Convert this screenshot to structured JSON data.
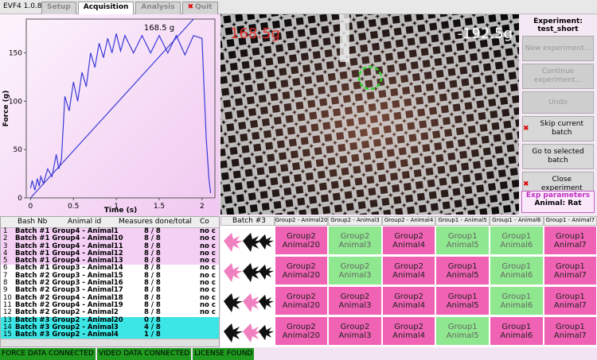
{
  "app": {
    "version": "EVF4 1.0.8",
    "tabs": [
      {
        "label": "Setup",
        "active": false
      },
      {
        "label": "Acquisition",
        "active": true
      },
      {
        "label": "Analysis",
        "active": false
      },
      {
        "label": "Quit",
        "active": false
      }
    ]
  },
  "force_plot": {
    "type": "line",
    "annotation": "168.5 g",
    "xlabel": "Time (s)",
    "ylabel": "Force (g)",
    "xlim": [
      -0.05,
      2.15
    ],
    "ylim": [
      0,
      185
    ],
    "xticks": [
      0,
      0.5,
      1,
      1.5,
      2
    ],
    "yticks": [
      0,
      50,
      100,
      150
    ],
    "series": [
      {
        "color": "#3a3ad8",
        "x": [
          0,
          0.02,
          0.05,
          0.08,
          0.1,
          0.12,
          0.15,
          0.2,
          0.25,
          0.3,
          0.33,
          0.36,
          0.4,
          0.45,
          0.5,
          0.55,
          0.6,
          0.65,
          0.7,
          0.75,
          0.8,
          0.85,
          0.9,
          0.95,
          1.0,
          1.05,
          1.1,
          1.2,
          1.3,
          1.4,
          1.5,
          1.6,
          1.7,
          1.8,
          1.9,
          2.0,
          2.02,
          2.05,
          2.08,
          2.1
        ],
        "values": [
          10,
          18,
          8,
          20,
          12,
          22,
          15,
          30,
          22,
          45,
          30,
          40,
          105,
          90,
          120,
          100,
          130,
          115,
          150,
          135,
          160,
          145,
          165,
          150,
          170,
          152,
          168,
          150,
          168,
          150,
          168,
          150,
          168,
          148,
          168,
          165,
          120,
          60,
          20,
          5
        ]
      },
      {
        "color": "#3a3ad8",
        "x": [
          0,
          1.9
        ],
        "values": [
          0,
          185
        ]
      }
    ]
  },
  "video": {
    "left_value": "168.5g",
    "right_value": "-192.5g"
  },
  "side": {
    "title": "Experiment:",
    "experiment": "test_short",
    "buttons": [
      {
        "label": "New experiment...",
        "enabled": false
      },
      {
        "label": "Continue experiment...",
        "enabled": false
      },
      {
        "label": "Undo",
        "enabled": false
      },
      {
        "label": "Skip current batch",
        "enabled": true
      },
      {
        "label": "Go to selected batch",
        "enabled": true
      },
      {
        "label": "Close experiment",
        "enabled": true
      }
    ],
    "params_title": "Exp parameters",
    "params": "Animal: Rat"
  },
  "table": {
    "headers": [
      "Bash Nb",
      "Animal id",
      "Measures done/total",
      "Co"
    ],
    "rows": [
      [
        "1",
        "Batch #1 Group4 - Animal1",
        "8 / 8",
        "no c"
      ],
      [
        "2",
        "Batch #1 Group4 - Animal10",
        "8 / 8",
        "no c"
      ],
      [
        "3",
        "Batch #1 Group4 - Animal11",
        "8 / 8",
        "no c"
      ],
      [
        "4",
        "Batch #1 Group4 - Animal12",
        "8 / 8",
        "no c"
      ],
      [
        "5",
        "Batch #1 Group4 - Animal13",
        "8 / 8",
        "no c"
      ],
      [
        "6",
        "Batch #1 Group3 - Animal14",
        "8 / 8",
        "no c"
      ],
      [
        "7",
        "Batch #2 Group3 - Animal15",
        "8 / 8",
        "no c"
      ],
      [
        "8",
        "Batch #2 Group3 - Animal16",
        "8 / 8",
        "no c"
      ],
      [
        "9",
        "Batch #2 Group3 - Animal17",
        "8 / 8",
        "no c"
      ],
      [
        "10",
        "Batch #2 Group4 - Animal18",
        "8 / 8",
        "no c"
      ],
      [
        "11",
        "Batch #2 Group4 - Animal19",
        "8 / 8",
        "no c"
      ],
      [
        "12",
        "Batch #2 Group2 - Animal2",
        "8 / 8",
        "no c"
      ],
      [
        "13",
        "Batch #3 Group2 - Animal20",
        "0 / 8"
      ],
      [
        "14",
        "Batch #3 Group2 - Animal3",
        "4 / 8"
      ],
      [
        "15",
        "Batch #3 Group2 - Animal4",
        "1 / 8"
      ]
    ],
    "row_colors": [
      "#f5d0f5",
      "#f5d0f5",
      "#f5d0f5",
      "#f5d0f5",
      "#f5d0f5",
      "#ffffff",
      "#ffffff",
      "#ffffff",
      "#ffffff",
      "#ffffff",
      "#ffffff",
      "#ffffff",
      "#3de6e6",
      "#3de6e6",
      "#3de6e6"
    ]
  },
  "grid": {
    "title": "Batch #3",
    "columns": [
      "Group2 - Animal20",
      "Group2 - Animal3",
      "Group2 - Animal4",
      "Group1 - Animal5",
      "Group1 - Animal6",
      "Group1 - Animal7"
    ],
    "rows": [
      [
        [
          "Group2",
          "Animal20",
          "#f062b4"
        ],
        [
          "Group2",
          "Animal3",
          "#8fe88f"
        ],
        [
          "Group2",
          "Animal4",
          "#f062b4"
        ],
        [
          "Group1",
          "Animal5",
          "#8fe88f"
        ],
        [
          "Group1",
          "Animal6",
          "#8fe88f"
        ],
        [
          "Group1",
          "Animal7",
          "#f062b4"
        ]
      ],
      [
        [
          "Group2",
          "Animal20",
          "#f062b4"
        ],
        [
          "Group2",
          "Animal3",
          "#8fe88f"
        ],
        [
          "Group2",
          "Animal4",
          "#f062b4"
        ],
        [
          "Group1",
          "Animal5",
          "#f062b4"
        ],
        [
          "Group1",
          "Animal6",
          "#8fe88f"
        ],
        [
          "Group1",
          "Animal7",
          "#f062b4"
        ]
      ],
      [
        [
          "Group2",
          "Animal20",
          "#f062b4"
        ],
        [
          "Group2",
          "Animal3",
          "#f062b4"
        ],
        [
          "Group2",
          "Animal4",
          "#f062b4"
        ],
        [
          "Group1",
          "Animal5",
          "#f062b4"
        ],
        [
          "Group1",
          "Animal6",
          "#8fe88f"
        ],
        [
          "Group1",
          "Animal7",
          "#f062b4"
        ]
      ],
      [
        [
          "Group2",
          "Animal20",
          "#f062b4"
        ],
        [
          "Group2",
          "Animal3",
          "#f062b4"
        ],
        [
          "Group2",
          "Animal4",
          "#f062b4"
        ],
        [
          "Group1",
          "Animal5",
          "#8fe88f"
        ],
        [
          "Group1",
          "Animal6",
          "#f062b4"
        ],
        [
          "Group1",
          "Animal7",
          "#f062b4"
        ]
      ]
    ]
  },
  "status": [
    "FORCE DATA CONNECTED",
    "VIDEO DATA CONNECTED",
    "LICENSE FOUND"
  ]
}
